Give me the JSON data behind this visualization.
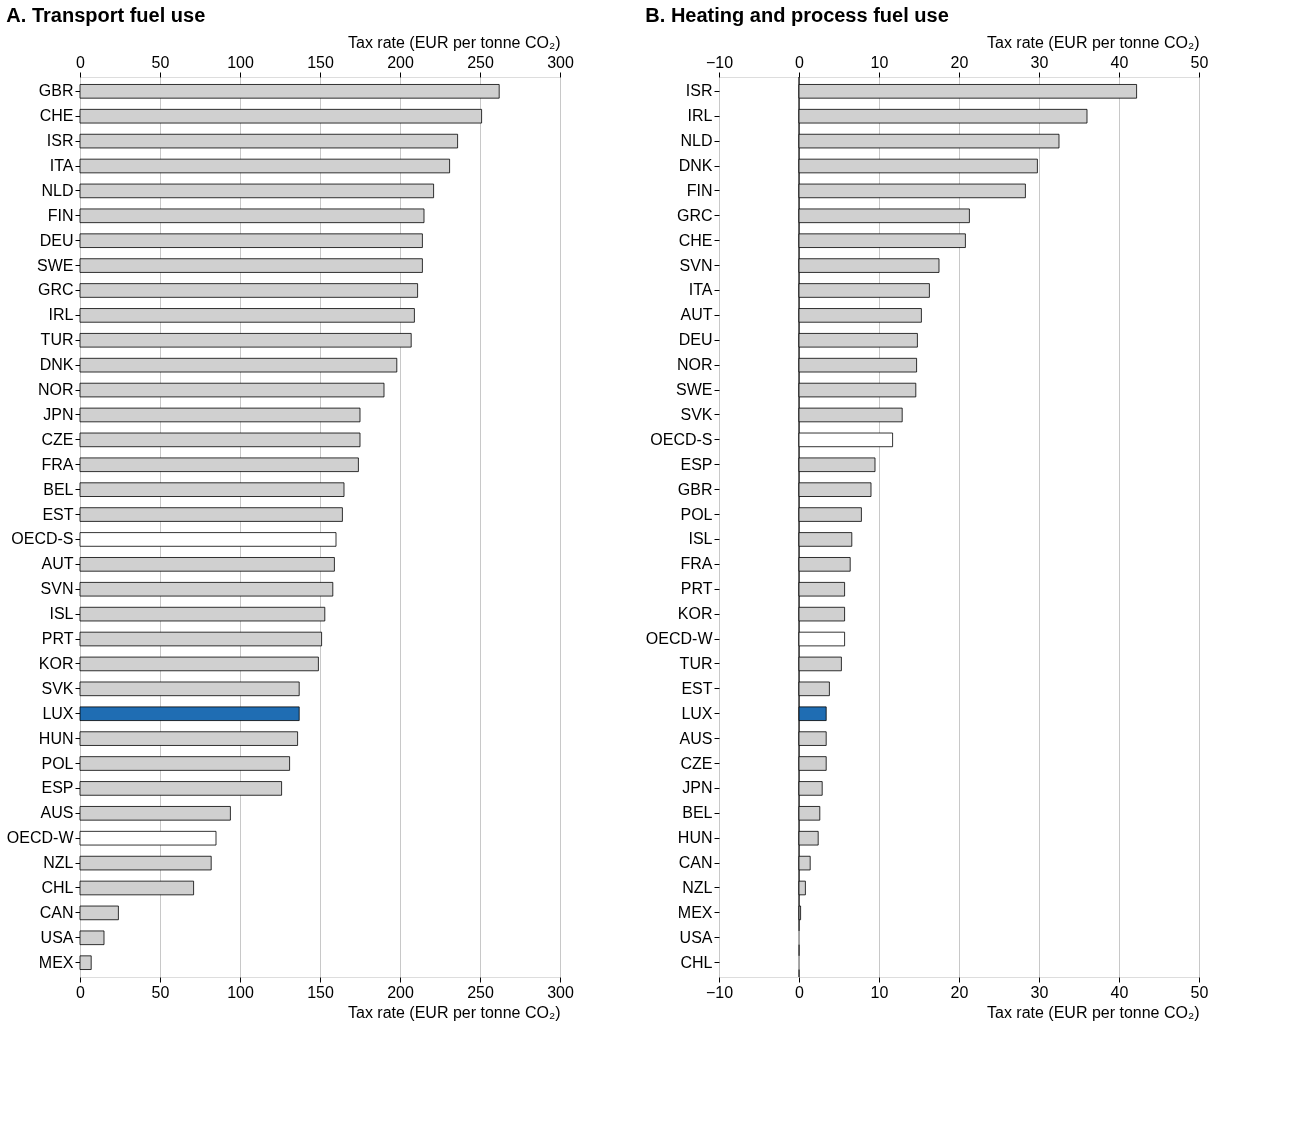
{
  "chart_data": [
    {
      "type": "bar",
      "title": "A. Transport fuel use",
      "orientation": "horizontal",
      "xlabel": "Tax rate (EUR per tonne CO₂)",
      "x2label": "Tax rate (EUR per tonne CO₂)",
      "categories": [
        "GBR",
        "CHE",
        "ISR",
        "ITA",
        "NLD",
        "FIN",
        "DEU",
        "SWE",
        "GRC",
        "IRL",
        "TUR",
        "DNK",
        "NOR",
        "JPN",
        "CZE",
        "FRA",
        "BEL",
        "EST",
        "OECD-S",
        "AUT",
        "SVN",
        "ISL",
        "PRT",
        "KOR",
        "SVK",
        "LUX",
        "HUN",
        "POL",
        "ESP",
        "AUS",
        "OECD-W",
        "NZL",
        "CHL",
        "CAN",
        "USA",
        "MEX"
      ],
      "values": [
        262,
        251,
        236,
        231,
        221,
        215,
        214,
        214,
        211,
        209,
        207,
        198,
        190,
        175,
        175,
        174,
        165,
        164,
        160,
        159,
        158,
        153,
        151,
        149,
        137,
        137,
        136,
        131,
        126,
        94,
        85,
        82,
        71,
        24,
        15,
        7
      ],
      "colors": [
        "#d0d0d0",
        "#d0d0d0",
        "#d0d0d0",
        "#d0d0d0",
        "#d0d0d0",
        "#d0d0d0",
        "#d0d0d0",
        "#d0d0d0",
        "#d0d0d0",
        "#d0d0d0",
        "#d0d0d0",
        "#d0d0d0",
        "#d0d0d0",
        "#d0d0d0",
        "#d0d0d0",
        "#d0d0d0",
        "#d0d0d0",
        "#d0d0d0",
        "#ffffff",
        "#d0d0d0",
        "#d0d0d0",
        "#d0d0d0",
        "#d0d0d0",
        "#d0d0d0",
        "#d0d0d0",
        "#1f6db3",
        "#d0d0d0",
        "#d0d0d0",
        "#d0d0d0",
        "#d0d0d0",
        "#ffffff",
        "#d0d0d0",
        "#d0d0d0",
        "#d0d0d0",
        "#d0d0d0",
        "#d0d0d0"
      ],
      "xlim": [
        0,
        300
      ],
      "xticks": [
        0,
        50,
        100,
        150,
        200,
        250,
        300
      ],
      "x2lim": [
        0,
        300
      ],
      "x2ticks": [
        0,
        50,
        100,
        150,
        200,
        250,
        300
      ],
      "grid": "x"
    },
    {
      "type": "bar",
      "title": "B. Heating and process fuel use",
      "orientation": "horizontal",
      "xlabel": "Tax rate (EUR per tonne CO₂)",
      "x2label": "Tax rate (EUR per tonne CO₂)",
      "categories": [
        "ISR",
        "IRL",
        "NLD",
        "DNK",
        "FIN",
        "GRC",
        "CHE",
        "SVN",
        "ITA",
        "AUT",
        "DEU",
        "NOR",
        "SWE",
        "SVK",
        "OECD-S",
        "ESP",
        "GBR",
        "POL",
        "ISL",
        "FRA",
        "PRT",
        "KOR",
        "OECD-W",
        "TUR",
        "EST",
        "LUX",
        "AUS",
        "CZE",
        "JPN",
        "BEL",
        "HUN",
        "CAN",
        "NZL",
        "MEX",
        "USA",
        "CHL"
      ],
      "values": [
        42.2,
        36,
        32.5,
        29.8,
        28.3,
        21.3,
        20.8,
        17.5,
        16.3,
        15.3,
        14.8,
        14.7,
        14.6,
        12.9,
        11.7,
        9.5,
        9,
        7.8,
        6.6,
        6.4,
        5.7,
        5.7,
        5.7,
        5.3,
        3.8,
        3.4,
        3.4,
        3.4,
        2.9,
        2.6,
        2.4,
        1.4,
        0.8,
        0.2,
        0,
        0
      ],
      "colors": [
        "#d0d0d0",
        "#d0d0d0",
        "#d0d0d0",
        "#d0d0d0",
        "#d0d0d0",
        "#d0d0d0",
        "#d0d0d0",
        "#d0d0d0",
        "#d0d0d0",
        "#d0d0d0",
        "#d0d0d0",
        "#d0d0d0",
        "#d0d0d0",
        "#d0d0d0",
        "#ffffff",
        "#d0d0d0",
        "#d0d0d0",
        "#d0d0d0",
        "#d0d0d0",
        "#d0d0d0",
        "#d0d0d0",
        "#d0d0d0",
        "#ffffff",
        "#d0d0d0",
        "#d0d0d0",
        "#1f6db3",
        "#d0d0d0",
        "#d0d0d0",
        "#d0d0d0",
        "#d0d0d0",
        "#d0d0d0",
        "#d0d0d0",
        "#d0d0d0",
        "#d0d0d0",
        "#d0d0d0",
        "#d0d0d0"
      ],
      "xlim": [
        -10,
        50
      ],
      "xticks": [
        -10,
        0,
        10,
        20,
        30,
        40,
        50
      ],
      "x2lim": [
        -10,
        50
      ],
      "x2ticks": [
        -10,
        0,
        10,
        20,
        30,
        40,
        50
      ],
      "grid": "x",
      "ref_lines": [
        {
          "axis": "x",
          "value": 0,
          "color": "#000000"
        }
      ]
    }
  ]
}
